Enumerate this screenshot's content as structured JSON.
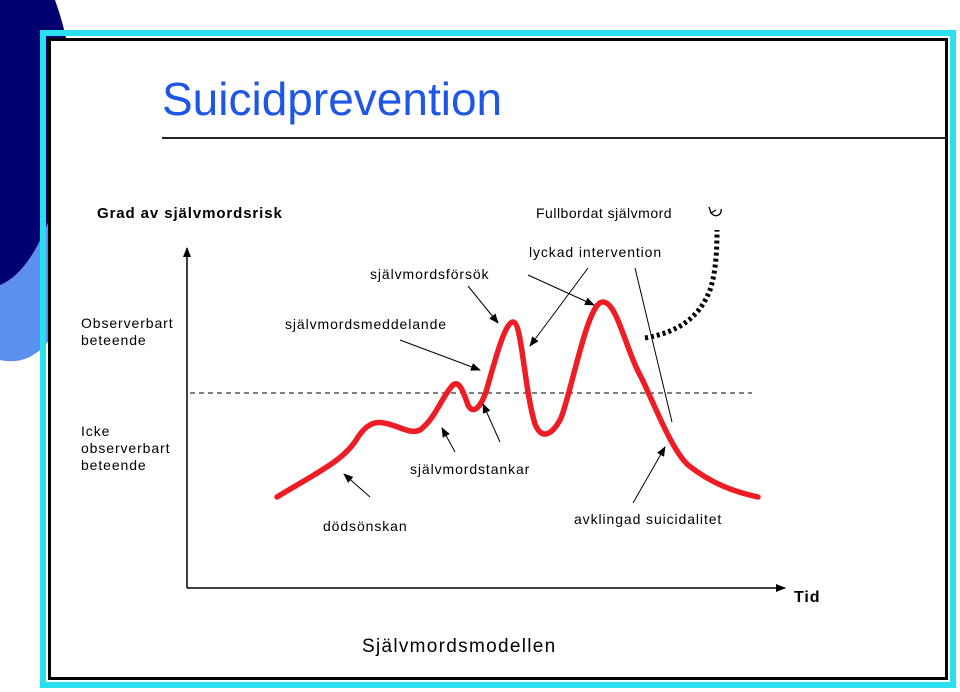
{
  "title": "Suicidprevention",
  "caption": "Självmordsmodellen",
  "axes": {
    "y_label": "Grad av självmordsrisk",
    "x_label": "Tid"
  },
  "zones": {
    "observable": [
      "Observerbart",
      "beteende"
    ],
    "not_observable": [
      "Icke",
      "observerbart",
      "beteende"
    ]
  },
  "annotations": {
    "completed_suicide": "Fullbordat självmord",
    "successful_intervention": "lyckad intervention",
    "suicide_attempt": "självmordsförsök",
    "suicide_communication": "självmordsmeddelande",
    "suicidal_thoughts": "självmordstankar",
    "death_wish": "dödsönskan",
    "declining_suicidality": "avklingad suicidalitet"
  },
  "colors": {
    "title": "#1e56e6",
    "curve": "#ee1c24",
    "frame_outer": "#28e0f0",
    "frame_inner": "#000000",
    "deco_dark": "#000070",
    "deco_light": "#5b8ff0"
  },
  "icons": {
    "end_marker": "open-arrow-icon"
  }
}
